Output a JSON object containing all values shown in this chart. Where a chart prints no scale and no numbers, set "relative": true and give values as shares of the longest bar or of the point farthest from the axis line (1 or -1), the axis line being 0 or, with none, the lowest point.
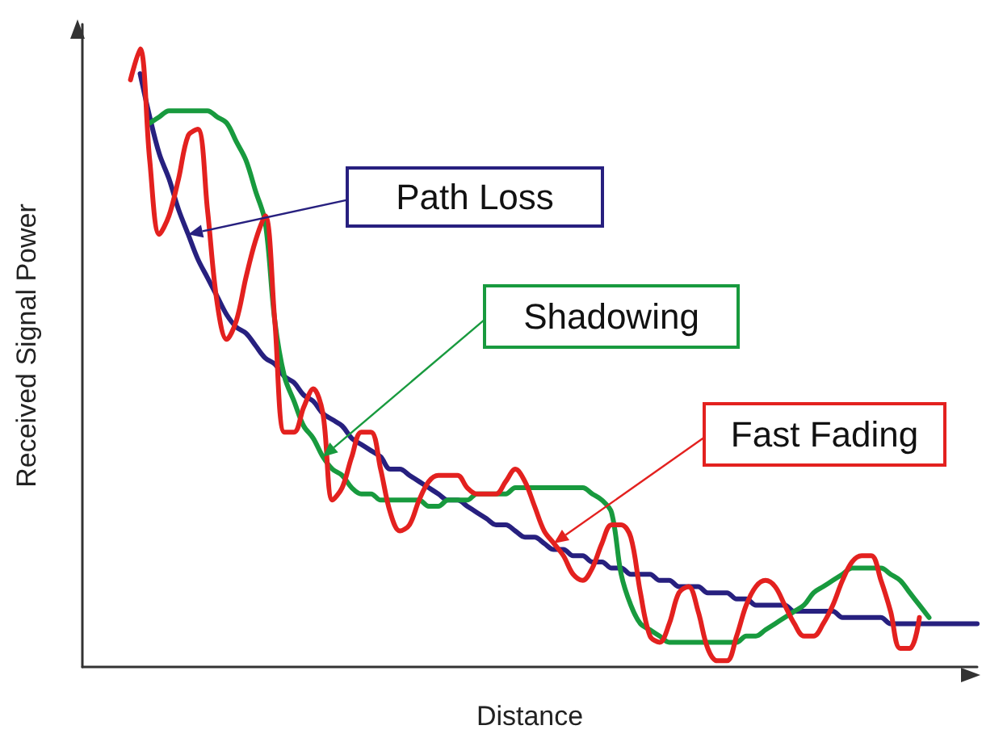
{
  "chart_data": {
    "type": "line",
    "relative": true,
    "xlabel": "Distance",
    "ylabel": "Received Signal Power",
    "marker": "none",
    "categories": [
      null,
      null,
      null,
      null,
      null,
      null,
      null,
      null,
      null,
      null,
      null,
      null,
      null,
      null,
      null,
      null,
      null,
      null,
      null,
      null,
      null,
      null,
      null,
      null,
      null,
      null,
      null,
      null,
      null,
      null,
      null,
      null,
      null,
      null,
      null,
      null,
      null,
      null,
      null,
      null,
      null,
      null,
      null,
      null,
      null,
      null,
      null,
      null,
      null,
      null,
      null,
      null,
      null,
      null,
      null,
      null,
      null,
      null,
      null,
      null,
      null,
      null,
      null,
      null,
      null,
      null,
      null,
      null,
      null,
      null,
      null,
      null,
      null,
      null,
      null,
      null,
      null,
      null,
      null,
      null,
      null,
      null,
      null,
      null,
      null,
      null,
      null,
      null,
      null,
      null,
      null,
      null,
      null,
      null
    ],
    "series": [
      {
        "name": "Path Loss",
        "color": "#27207f",
        "values": [
          null,
          null,
          null,
          null,
          null,
          null,
          0.96,
          0.89,
          0.83,
          0.79,
          0.74,
          0.7,
          0.66,
          0.63,
          0.6,
          0.57,
          0.55,
          0.54,
          0.52,
          0.5,
          0.49,
          0.47,
          0.46,
          0.44,
          0.43,
          0.41,
          0.4,
          0.39,
          0.37,
          0.36,
          0.35,
          0.34,
          0.32,
          0.32,
          0.31,
          0.3,
          0.29,
          0.28,
          0.27,
          0.27,
          0.26,
          0.25,
          0.24,
          0.23,
          0.23,
          0.22,
          0.21,
          0.21,
          0.2,
          0.19,
          0.19,
          0.18,
          0.18,
          0.17,
          0.17,
          0.16,
          0.16,
          0.15,
          0.15,
          0.15,
          0.14,
          0.14,
          0.13,
          0.13,
          0.13,
          0.12,
          0.12,
          0.12,
          0.11,
          0.11,
          0.1,
          0.1,
          0.1,
          0.1,
          0.09,
          0.09,
          0.09,
          0.09,
          0.09,
          0.08,
          0.08,
          0.08,
          0.08,
          0.08,
          0.07,
          0.07,
          0.07,
          0.07,
          0.07,
          0.07,
          0.07,
          0.07,
          0.07,
          0.07
        ]
      },
      {
        "name": "Shadowing",
        "color": "#189a3e",
        "values": [
          null,
          null,
          null,
          null,
          null,
          null,
          null,
          0.88,
          0.89,
          0.9,
          0.9,
          0.9,
          0.9,
          0.9,
          0.89,
          0.88,
          0.85,
          0.82,
          0.77,
          0.72,
          0.56,
          0.47,
          0.43,
          0.39,
          0.37,
          0.34,
          0.32,
          0.31,
          0.29,
          0.28,
          0.28,
          0.27,
          0.27,
          0.27,
          0.27,
          0.27,
          0.26,
          0.26,
          0.27,
          0.27,
          0.27,
          0.28,
          0.28,
          0.28,
          0.28,
          0.29,
          0.29,
          0.29,
          0.29,
          0.29,
          0.29,
          0.29,
          0.29,
          0.28,
          0.27,
          0.25,
          0.15,
          0.1,
          0.07,
          0.06,
          0.05,
          0.04,
          0.04,
          0.04,
          0.04,
          0.04,
          0.04,
          0.04,
          0.04,
          0.05,
          0.05,
          0.06,
          0.07,
          0.08,
          0.09,
          0.1,
          0.12,
          0.13,
          0.14,
          0.15,
          0.16,
          0.16,
          0.16,
          0.16,
          0.15,
          0.14,
          0.12,
          0.1,
          0.08,
          null,
          null,
          null,
          null,
          null
        ]
      },
      {
        "name": "Fast Fading",
        "color": "#e3211f",
        "values": [
          null,
          null,
          null,
          null,
          null,
          0.95,
          1.0,
          0.82,
          0.7,
          0.73,
          0.79,
          0.86,
          0.87,
          0.74,
          0.59,
          0.53,
          0.56,
          0.63,
          0.69,
          0.73,
          0.56,
          0.38,
          0.38,
          0.42,
          0.45,
          0.41,
          0.27,
          0.29,
          0.34,
          0.38,
          0.38,
          0.32,
          0.25,
          0.22,
          0.23,
          0.27,
          0.3,
          0.31,
          0.31,
          0.31,
          0.29,
          0.28,
          0.28,
          0.28,
          0.3,
          0.32,
          0.3,
          0.26,
          0.22,
          0.2,
          0.18,
          0.15,
          0.14,
          0.16,
          0.2,
          0.23,
          0.23,
          0.21,
          0.12,
          0.05,
          0.04,
          0.07,
          0.12,
          0.13,
          0.09,
          0.03,
          0.01,
          0.01,
          0.05,
          0.1,
          0.13,
          0.14,
          0.13,
          0.1,
          0.07,
          0.05,
          0.05,
          0.07,
          0.1,
          0.14,
          0.17,
          0.18,
          0.18,
          0.14,
          0.09,
          0.03,
          0.03,
          0.08,
          null,
          null,
          null,
          null,
          null,
          null
        ]
      }
    ]
  }
}
